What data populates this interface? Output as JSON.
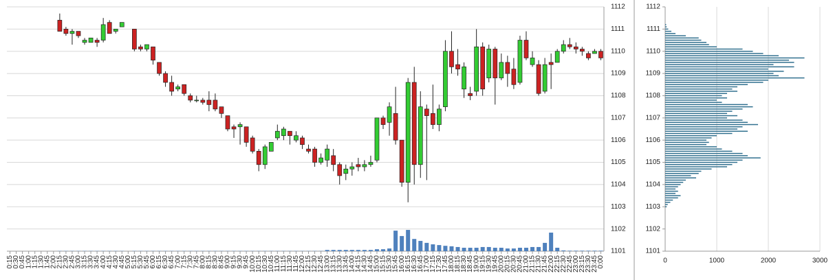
{
  "chart_data": [
    {
      "type": "candlestick",
      "categories": [
        "0:15",
        "0:30",
        "0:45",
        "1:00",
        "1:15",
        "1:30",
        "1:45",
        "2:00",
        "2:15",
        "2:30",
        "2:45",
        "3:00",
        "3:15",
        "3:30",
        "3:45",
        "4:00",
        "4:15",
        "4:30",
        "4:45",
        "5:00",
        "5:15",
        "5:30",
        "5:45",
        "6:00",
        "6:15",
        "6:30",
        "6:45",
        "7:00",
        "7:15",
        "7:30",
        "7:45",
        "8:00",
        "8:15",
        "8:30",
        "8:45",
        "9:00",
        "9:15",
        "9:30",
        "9:45",
        "10:00",
        "10:15",
        "10:30",
        "10:45",
        "11:00",
        "11:15",
        "11:30",
        "11:45",
        "12:00",
        "12:15",
        "12:30",
        "12:45",
        "13:00",
        "13:15",
        "13:30",
        "13:45",
        "14:00",
        "14:15",
        "14:30",
        "14:45",
        "15:00",
        "15:15",
        "15:30",
        "15:45",
        "16:00",
        "16:15",
        "16:30",
        "16:45",
        "17:00",
        "17:15",
        "17:30",
        "17:45",
        "18:00",
        "18:15",
        "18:30",
        "18:45",
        "19:00",
        "19:15",
        "19:30",
        "19:45",
        "20:00",
        "20:15",
        "20:30",
        "20:45",
        "21:00",
        "21:15",
        "21:30",
        "21:45",
        "22:00",
        "22:15",
        "22:30",
        "22:45",
        "23:00",
        "23:15",
        "23:30",
        "23:45",
        "0:00"
      ],
      "open": [
        null,
        null,
        null,
        null,
        null,
        null,
        null,
        null,
        1111.4,
        1111.0,
        1110.8,
        1110.9,
        1110.4,
        1110.4,
        1110.5,
        1110.5,
        1111.3,
        1110.9,
        1111.1,
        null,
        1111.0,
        1110.2,
        1110.1,
        1110.2,
        1109.5,
        1109.0,
        1108.6,
        1108.3,
        1108.5,
        1108.0,
        1107.8,
        1107.8,
        1107.8,
        1107.8,
        1107.5,
        1107.1,
        1106.6,
        1106.6,
        1106.6,
        1106.1,
        1105.5,
        1104.9,
        1105.5,
        1106.1,
        1106.2,
        1106.4,
        1106.0,
        1106.1,
        1105.6,
        1105.6,
        1105.0,
        1105.1,
        1105.3,
        1104.9,
        1104.5,
        1104.7,
        1104.9,
        1104.8,
        1104.9,
        1105.1,
        1107.0,
        1106.8,
        1107.2,
        1106.0,
        1104.1,
        1108.6,
        1104.9,
        1107.4,
        1107.2,
        1106.7,
        1107.5,
        1110.0,
        1109.4,
        1108.3,
        1108.1,
        1108.2,
        1110.2,
        1108.8,
        1110.1,
        1108.8,
        1109.5,
        1109.2,
        1108.6,
        1110.5,
        1109.4,
        1109.4,
        1108.2,
        1109.5,
        1109.5,
        1110.0,
        1110.3,
        1110.2,
        1110.1,
        1109.9,
        1109.9,
        1110.0
      ],
      "high": [
        null,
        null,
        null,
        null,
        null,
        null,
        null,
        null,
        1111.7,
        1111.1,
        1111.0,
        1110.9,
        1110.6,
        1110.6,
        1110.6,
        1111.5,
        1111.4,
        1111.0,
        1111.3,
        null,
        1111.0,
        1110.3,
        1110.3,
        1110.2,
        1109.5,
        1109.1,
        1108.9,
        1108.5,
        1108.5,
        1108.1,
        1108.0,
        1107.9,
        1108.2,
        1108.1,
        1107.5,
        1107.1,
        1106.7,
        1106.8,
        1106.6,
        1106.2,
        1105.6,
        1105.8,
        1105.9,
        1106.7,
        1106.6,
        1106.4,
        1106.4,
        1106.2,
        1105.8,
        1105.7,
        1105.4,
        1105.8,
        1105.6,
        1105.0,
        1104.9,
        1105.0,
        1105.2,
        1105.1,
        1105.3,
        1107.0,
        1107.1,
        1107.7,
        1108.4,
        1106.0,
        1108.8,
        1109.3,
        1108.2,
        1107.6,
        1108.5,
        1107.6,
        1110.5,
        1110.9,
        1110.1,
        1109.5,
        1108.4,
        1111.0,
        1110.4,
        1110.3,
        1110.2,
        1109.9,
        1109.8,
        1109.7,
        1110.7,
        1110.9,
        1110.0,
        1109.6,
        1109.7,
        1109.9,
        1110.1,
        1110.5,
        1110.6,
        1110.4,
        1110.2,
        1110.0,
        1110.1,
        1110.1
      ],
      "low": [
        null,
        null,
        null,
        null,
        null,
        null,
        null,
        null,
        1110.9,
        1110.7,
        1110.3,
        1110.6,
        1110.3,
        1110.4,
        1110.2,
        1110.4,
        1110.8,
        1110.8,
        1111.1,
        null,
        1110.0,
        1110.0,
        1110.0,
        1109.4,
        1108.9,
        1108.4,
        1108.0,
        1108.2,
        1108.0,
        1107.7,
        1107.7,
        1107.6,
        1107.3,
        1107.3,
        1107.0,
        1106.4,
        1106.1,
        1105.8,
        1105.7,
        1105.4,
        1104.6,
        1104.7,
        1105.5,
        1106.0,
        1106.0,
        1105.8,
        1105.9,
        1105.6,
        1105.4,
        1104.8,
        1104.9,
        1104.8,
        1104.6,
        1104.0,
        1104.2,
        1104.4,
        1104.6,
        1104.6,
        1104.8,
        1105.0,
        1106.5,
        1106.2,
        1105.8,
        1103.9,
        1103.2,
        1104.0,
        1104.3,
        1104.2,
        1106.5,
        1106.4,
        1107.3,
        1109.0,
        1108.9,
        1107.9,
        1107.8,
        1108.0,
        1108.0,
        1108.6,
        1107.6,
        1108.7,
        1108.4,
        1108.3,
        1108.5,
        1109.6,
        1109.3,
        1108.0,
        1108.1,
        1108.3,
        1109.5,
        1109.9,
        1110.1,
        1109.9,
        1109.8,
        1109.6,
        1109.9,
        1109.6
      ],
      "close": [
        null,
        null,
        null,
        null,
        null,
        null,
        null,
        null,
        1110.9,
        1110.8,
        1110.9,
        1110.7,
        1110.5,
        1110.6,
        1110.4,
        1111.2,
        1110.8,
        1111.0,
        1111.3,
        null,
        1110.1,
        1110.1,
        1110.3,
        1109.6,
        1109.0,
        1108.6,
        1108.2,
        1108.4,
        1108.1,
        1107.8,
        1107.8,
        1107.7,
        1107.6,
        1107.4,
        1107.2,
        1106.5,
        1106.5,
        1106.7,
        1105.9,
        1105.5,
        1104.9,
        1105.7,
        1105.9,
        1106.4,
        1106.5,
        1106.2,
        1106.2,
        1105.8,
        1105.5,
        1105.0,
        1105.2,
        1105.6,
        1104.9,
        1104.4,
        1104.7,
        1104.8,
        1104.8,
        1104.9,
        1105.0,
        1107.0,
        1106.7,
        1107.5,
        1106.0,
        1104.1,
        1108.6,
        1104.9,
        1107.5,
        1107.1,
        1106.7,
        1107.4,
        1110.0,
        1109.3,
        1109.2,
        1109.3,
        1108.0,
        1110.2,
        1108.3,
        1110.1,
        1108.8,
        1109.5,
        1109.0,
        1108.5,
        1110.5,
        1109.7,
        1109.7,
        1108.1,
        1109.4,
        1109.4,
        1110.0,
        1110.3,
        1110.2,
        1110.1,
        1110.0,
        1109.7,
        1110.0,
        1109.7
      ],
      "volume": [
        null,
        null,
        null,
        null,
        null,
        null,
        null,
        null,
        1,
        1,
        1,
        1,
        1,
        1,
        1,
        1,
        1,
        1,
        1,
        null,
        1,
        1,
        1,
        1,
        1,
        1,
        1,
        1,
        1,
        1,
        1,
        1,
        1,
        1,
        1,
        1,
        1,
        1,
        1,
        1,
        1,
        1,
        1,
        1,
        1,
        1,
        1,
        1,
        1,
        1,
        1,
        5,
        5,
        5,
        5,
        5,
        5,
        5,
        5,
        8,
        8,
        11,
        84,
        62,
        87,
        50,
        42,
        34,
        28,
        25,
        22,
        20,
        17,
        14,
        14,
        14,
        17,
        17,
        14,
        14,
        11,
        11,
        14,
        14,
        17,
        17,
        34,
        76,
        14,
        3,
        2,
        2,
        2,
        2,
        2,
        2
      ],
      "up_color": "#33cc33",
      "down_color": "#cc2222",
      "volume_color": "#4f81bd",
      "ylim": [
        1101,
        1112
      ],
      "yticks": [
        1101,
        1102,
        1103,
        1104,
        1105,
        1106,
        1107,
        1108,
        1109,
        1110,
        1111,
        1112
      ],
      "y2lim": [
        0,
        1000
      ],
      "grid": true
    },
    {
      "type": "hbar",
      "y": [
        1111.2,
        1111.1,
        1111.0,
        1110.9,
        1110.8,
        1110.7,
        1110.6,
        1110.5,
        1110.4,
        1110.3,
        1110.2,
        1110.1,
        1110.0,
        1109.9,
        1109.8,
        1109.7,
        1109.6,
        1109.5,
        1109.4,
        1109.3,
        1109.2,
        1109.1,
        1109.0,
        1108.9,
        1108.8,
        1108.7,
        1108.6,
        1108.5,
        1108.4,
        1108.3,
        1108.2,
        1108.1,
        1108.0,
        1107.9,
        1107.8,
        1107.7,
        1107.6,
        1107.5,
        1107.4,
        1107.3,
        1107.2,
        1107.1,
        1107.0,
        1106.9,
        1106.8,
        1106.7,
        1106.6,
        1106.5,
        1106.4,
        1106.3,
        1106.2,
        1106.1,
        1106.0,
        1105.9,
        1105.8,
        1105.7,
        1105.6,
        1105.5,
        1105.4,
        1105.3,
        1105.2,
        1105.1,
        1105.0,
        1104.9,
        1104.8,
        1104.7,
        1104.6,
        1104.5,
        1104.4,
        1104.3,
        1104.2,
        1104.1,
        1104.0,
        1103.9,
        1103.8,
        1103.7,
        1103.6,
        1103.5,
        1103.4,
        1103.3,
        1103.2,
        1103.1,
        1103.0
      ],
      "values": [
        20,
        30,
        60,
        120,
        200,
        400,
        650,
        700,
        800,
        850,
        1000,
        1500,
        1700,
        1900,
        2200,
        2700,
        2400,
        2500,
        2100,
        2500,
        2000,
        2300,
        2100,
        2200,
        2700,
        2000,
        1900,
        1600,
        1400,
        1300,
        1400,
        1200,
        1100,
        1200,
        1000,
        1100,
        1600,
        1700,
        1500,
        1300,
        1200,
        1400,
        1200,
        1500,
        1600,
        1800,
        1500,
        1400,
        1600,
        1300,
        1000,
        900,
        800,
        850,
        800,
        1000,
        1100,
        1300,
        1500,
        1600,
        1850,
        1500,
        1400,
        1300,
        1200,
        900,
        700,
        650,
        500,
        600,
        400,
        350,
        300,
        250,
        200,
        250,
        200,
        300,
        250,
        150,
        100,
        50,
        30
      ],
      "color": "#31708f",
      "xlim": [
        0,
        3000
      ],
      "xticks": [
        0,
        1000,
        2000,
        3000
      ],
      "ylim": [
        1101,
        1112
      ],
      "yticks": [
        1101,
        1102,
        1103,
        1104,
        1105,
        1106,
        1107,
        1108,
        1109,
        1110,
        1111,
        1112
      ],
      "grid": true
    }
  ]
}
